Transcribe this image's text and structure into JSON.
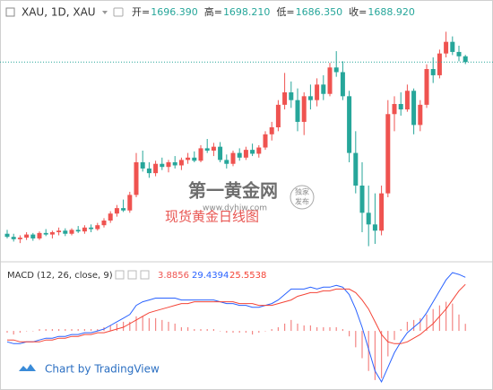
{
  "chart_data": [
    {
      "type": "candlestick",
      "title": "XAU, 1D, XAU",
      "ohlc_legend": [
        {
          "label": "开=",
          "value": "1696.390"
        },
        {
          "label": "高=",
          "value": "1698.210"
        },
        {
          "label": "低=",
          "value": "1686.350"
        },
        {
          "label": "收=",
          "value": "1688.920"
        }
      ],
      "up_color": "#ef5350",
      "down_color": "#26a69a",
      "last_price_line": true,
      "ylim": [
        1440,
        1740
      ],
      "open": [
        1468,
        1464,
        1461,
        1463,
        1467,
        1462,
        1469,
        1467,
        1470,
        1472,
        1468,
        1473,
        1471,
        1476,
        1474,
        1479,
        1485,
        1494,
        1501,
        1498,
        1518,
        1560,
        1552,
        1546,
        1558,
        1554,
        1560,
        1556,
        1563,
        1566,
        1562,
        1578,
        1575,
        1580,
        1563,
        1558,
        1572,
        1566,
        1576,
        1571,
        1579,
        1596,
        1605,
        1634,
        1650,
        1640,
        1612,
        1645,
        1640,
        1660,
        1648,
        1682,
        1676,
        1645,
        1572,
        1530,
        1495,
        1480,
        1472,
        1520,
        1622,
        1635,
        1628,
        1652,
        1608,
        1634,
        1680,
        1672,
        1700,
        1715,
        1702,
        1696.39
      ],
      "high": [
        1473,
        1468,
        1466,
        1470,
        1469,
        1471,
        1474,
        1472,
        1476,
        1475,
        1475,
        1478,
        1479,
        1480,
        1482,
        1488,
        1497,
        1505,
        1512,
        1522,
        1572,
        1575,
        1560,
        1562,
        1566,
        1563,
        1568,
        1566,
        1572,
        1574,
        1582,
        1590,
        1585,
        1586,
        1570,
        1575,
        1578,
        1580,
        1584,
        1582,
        1600,
        1612,
        1640,
        1675,
        1664,
        1655,
        1650,
        1660,
        1668,
        1672,
        1688,
        1703,
        1690,
        1652,
        1600,
        1560,
        1530,
        1520,
        1530,
        1640,
        1645,
        1650,
        1660,
        1655,
        1640,
        1686,
        1695,
        1705,
        1728,
        1722,
        1710,
        1698.21
      ],
      "low": [
        1462,
        1458,
        1456,
        1460,
        1459,
        1460,
        1465,
        1462,
        1466,
        1465,
        1466,
        1469,
        1468,
        1470,
        1472,
        1476,
        1482,
        1490,
        1496,
        1495,
        1515,
        1548,
        1540,
        1542,
        1550,
        1547,
        1552,
        1550,
        1558,
        1560,
        1560,
        1572,
        1568,
        1560,
        1552,
        1555,
        1562,
        1563,
        1568,
        1566,
        1576,
        1588,
        1600,
        1628,
        1630,
        1600,
        1595,
        1628,
        1632,
        1640,
        1645,
        1670,
        1640,
        1560,
        1520,
        1470,
        1452,
        1455,
        1466,
        1515,
        1600,
        1620,
        1625,
        1596,
        1600,
        1630,
        1662,
        1668,
        1695,
        1698,
        1690,
        1686.35
      ],
      "close": [
        1464,
        1461,
        1463,
        1467,
        1462,
        1469,
        1467,
        1470,
        1472,
        1468,
        1473,
        1471,
        1476,
        1474,
        1479,
        1485,
        1494,
        1501,
        1498,
        1518,
        1560,
        1552,
        1546,
        1558,
        1554,
        1560,
        1556,
        1563,
        1566,
        1562,
        1578,
        1575,
        1580,
        1563,
        1558,
        1572,
        1566,
        1576,
        1571,
        1579,
        1596,
        1605,
        1634,
        1650,
        1640,
        1612,
        1645,
        1640,
        1660,
        1648,
        1682,
        1676,
        1645,
        1572,
        1530,
        1495,
        1480,
        1472,
        1520,
        1622,
        1635,
        1628,
        1652,
        1608,
        1634,
        1680,
        1672,
        1700,
        1715,
        1702,
        1696.39,
        1688.92
      ]
    },
    {
      "type": "macd",
      "title": "MACD (12, 26, close, 9)",
      "ylim": [
        -30,
        35
      ],
      "series": [
        {
          "type": "histogram",
          "color": "#ef5350",
          "values": [
            -1,
            -2,
            -1,
            0,
            0,
            1,
            1,
            1,
            1,
            1,
            1,
            1,
            1,
            1,
            1,
            2,
            3,
            4,
            5,
            5,
            8,
            8,
            7,
            7,
            6,
            5,
            4,
            2,
            2,
            1,
            1,
            1,
            1,
            0,
            -1,
            -1,
            -1,
            -1,
            -2,
            -1,
            0,
            1,
            2,
            4,
            6,
            4,
            3,
            3,
            2,
            2,
            2,
            2,
            1,
            -3,
            -9,
            -15,
            -22,
            -27,
            -26,
            -14,
            -5,
            1,
            5,
            6,
            7,
            9,
            12,
            14,
            16,
            15,
            9,
            3.8856
          ]
        },
        {
          "type": "line",
          "color": "#2962ff",
          "values": [
            -6,
            -7,
            -7,
            -6,
            -6,
            -5,
            -4,
            -4,
            -3,
            -3,
            -2,
            -2,
            -1,
            -1,
            0,
            1,
            3,
            5,
            7,
            9,
            14,
            16,
            17,
            18,
            18,
            18,
            18,
            17,
            17,
            17,
            17,
            17,
            17,
            16,
            15,
            15,
            14,
            14,
            13,
            13,
            14,
            15,
            17,
            20,
            23,
            23,
            23,
            24,
            23,
            24,
            24,
            25,
            24,
            20,
            12,
            2,
            -10,
            -22,
            -28,
            -20,
            -12,
            -6,
            -1,
            2,
            5,
            10,
            16,
            22,
            28,
            32,
            31,
            29.4394
          ]
        },
        {
          "type": "line",
          "color": "#f44336",
          "values": [
            -5,
            -5,
            -6,
            -6,
            -6,
            -6,
            -5,
            -5,
            -4,
            -4,
            -3,
            -3,
            -2,
            -2,
            -1,
            -1,
            0,
            1,
            2,
            4,
            6,
            8,
            10,
            11,
            12,
            13,
            14,
            15,
            15,
            16,
            16,
            16,
            16,
            16,
            16,
            16,
            15,
            15,
            15,
            14,
            14,
            14,
            15,
            16,
            17,
            19,
            20,
            21,
            21,
            22,
            22,
            23,
            23,
            23,
            21,
            17,
            12,
            5,
            -2,
            -6,
            -7,
            -7,
            -6,
            -4,
            -2,
            1,
            4,
            8,
            12,
            17,
            22,
            25.5538
          ]
        }
      ]
    }
  ],
  "watermark": {
    "brand": "第一黄金网",
    "url": "www.dyhjw.com",
    "badge": [
      "独家",
      "发布"
    ],
    "caption": "现货黄金日线图"
  },
  "footer": "Chart by TradingView"
}
